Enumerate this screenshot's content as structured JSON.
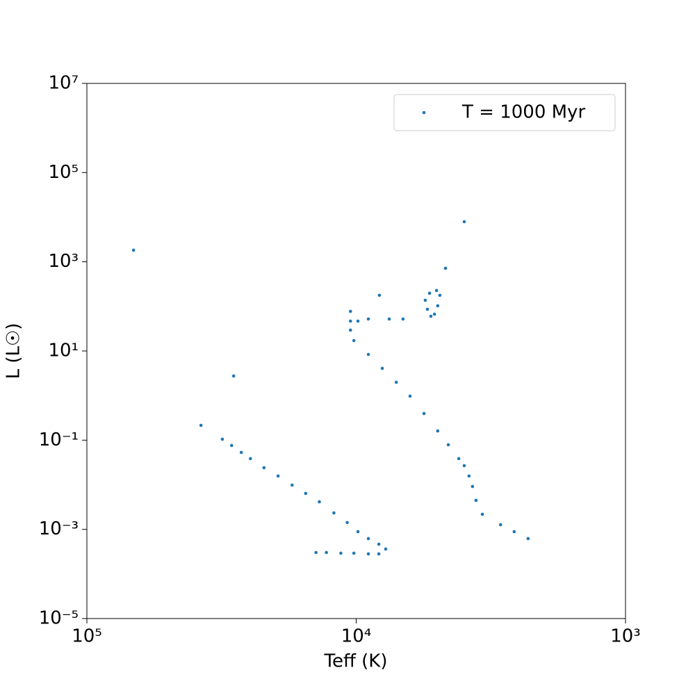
{
  "chart_data": {
    "type": "scatter",
    "x_label": "Teff (K)",
    "y_label": "L (L☉)",
    "xscale": "log",
    "yscale": "log",
    "xlim": [
      100000,
      1000
    ],
    "ylim": [
      1e-05,
      10000000
    ],
    "xticks": [
      {
        "value": 100000,
        "label": "10⁵"
      },
      {
        "value": 10000,
        "label": "10⁴"
      },
      {
        "value": 1000,
        "label": "10³"
      }
    ],
    "yticks": [
      {
        "value": 1e-05,
        "label": "10⁻⁵"
      },
      {
        "value": 0.001,
        "label": "10⁻³"
      },
      {
        "value": 0.1,
        "label": "10⁻¹"
      },
      {
        "value": 10,
        "label": "10¹"
      },
      {
        "value": 1000,
        "label": "10³"
      },
      {
        "value": 100000,
        "label": "10⁵"
      },
      {
        "value": 10000000,
        "label": "10⁷"
      }
    ],
    "legend": "upper right",
    "x": [
      67100,
      3970,
      28500,
      37700,
      31400,
      8200,
      4660,
      10500,
      29000,
      26700,
      24700,
      22000,
      19500,
      17300,
      15400,
      13700,
      12100,
      10800,
      9850,
      9010,
      8240,
      7770,
      8240,
      9010,
      10200,
      11400,
      12900,
      14100,
      2300,
      2590,
      2910,
      3400,
      3590,
      3700,
      3810,
      3970,
      4160,
      4550,
      4980,
      5600,
      6310,
      7100,
      8000,
      9010,
      10200,
      10500,
      10500,
      9850,
      9010,
      7540,
      6700,
      5280,
      5440,
      5540,
      5340,
      5030,
      4890,
      4980,
      5120
    ],
    "series": [
      {
        "name": "T = 1000 Myr",
        "color": "#1f77b4",
        "values": [
          1820,
          7920,
          2.75,
          0.215,
          0.105,
          177,
          716,
          77.4,
          0.076,
          0.0531,
          0.0385,
          0.0241,
          0.0157,
          0.00984,
          0.0064,
          0.00416,
          0.00234,
          0.00142,
          0.000889,
          0.000621,
          0.000466,
          0.000362,
          0.000282,
          0.000282,
          0.000292,
          0.000292,
          0.000303,
          0.000303,
          0.000621,
          0.000889,
          0.00127,
          0.00218,
          0.00447,
          0.00915,
          0.0157,
          0.0268,
          0.0385,
          0.0788,
          0.161,
          0.396,
          0.971,
          1.99,
          4.08,
          8.36,
          17.1,
          29.4,
          46.8,
          46.8,
          52.1,
          52.1,
          52.1,
          60.1,
          86.1,
          137,
          197,
          227,
          177,
          103,
          67.0
        ]
      }
    ]
  }
}
